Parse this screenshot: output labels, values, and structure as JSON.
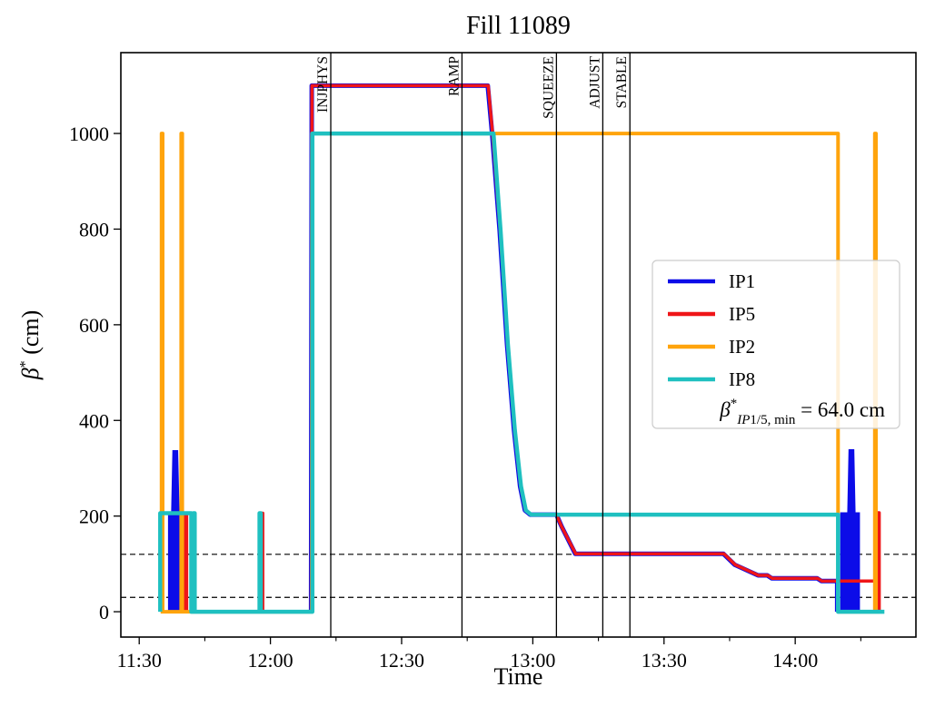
{
  "chart_data": {
    "type": "line",
    "title": "Fill 11089",
    "xlabel": "Time",
    "ylabel": {
      "beta": "β",
      "star": "*",
      "unit": " (cm)"
    },
    "x_unit": "minutes_since_11:30",
    "xlim_minutes": [
      -4.2,
      177.6
    ],
    "ylim_cm": [
      -53,
      1169
    ],
    "x_ticks": [
      {
        "label": "11:30",
        "t": 0
      },
      {
        "label": "12:00",
        "t": 30
      },
      {
        "label": "12:30",
        "t": 60
      },
      {
        "label": "13:00",
        "t": 90
      },
      {
        "label": "13:30",
        "t": 120
      },
      {
        "label": "14:00",
        "t": 150
      }
    ],
    "x_minor_ticks": [
      15,
      45,
      75,
      105,
      135,
      165
    ],
    "y_ticks": [
      0,
      200,
      400,
      600,
      800,
      1000
    ],
    "dashed_hlines_cm": [
      120,
      30
    ],
    "beam_modes": [
      {
        "label": "INJPHYS",
        "t": 43.8
      },
      {
        "label": "RAMP",
        "t": 73.8
      },
      {
        "label": "SQUEEZE",
        "t": 95.4
      },
      {
        "label": "ADJUST",
        "t": 106.0
      },
      {
        "label": "STABLE",
        "t": 112.2
      }
    ],
    "series": [
      {
        "name": "IP1",
        "color": "#0c0ce8",
        "points": [
          [
            39.3,
            0
          ],
          [
            39.45,
            1100
          ],
          [
            79.7,
            1100
          ],
          [
            80.7,
            1000
          ],
          [
            82.4,
            800
          ],
          [
            84.1,
            560
          ],
          [
            85.7,
            380
          ],
          [
            87.1,
            262
          ],
          [
            88.2,
            212
          ],
          [
            89.4,
            203
          ],
          [
            95.4,
            203
          ],
          [
            96.6,
            178
          ],
          [
            99.7,
            121
          ],
          [
            133.6,
            121
          ],
          [
            136.2,
            98
          ],
          [
            141.5,
            76
          ],
          [
            143.6,
            76
          ],
          [
            144.6,
            70
          ],
          [
            155.0,
            70
          ],
          [
            156.0,
            64
          ],
          [
            159.6,
            64
          ],
          [
            159.6,
            0
          ]
        ],
        "bursts": [
          [
            [
              6.9,
              0
            ],
            [
              6.9,
              205
            ],
            [
              7.6,
              205
            ],
            [
              7.9,
              335
            ],
            [
              8.6,
              335
            ],
            [
              8.9,
              205
            ],
            [
              10.1,
              205
            ],
            [
              10.1,
              0
            ]
          ],
          [
            [
              160.6,
              0
            ],
            [
              160.6,
              205
            ],
            [
              162.2,
              205
            ],
            [
              162.5,
              337
            ],
            [
              163.2,
              337
            ],
            [
              163.5,
              205
            ],
            [
              164.5,
              205
            ],
            [
              164.5,
              0
            ]
          ]
        ]
      },
      {
        "name": "IP5",
        "color": "#ef1518",
        "points": [
          [
            10.5,
            0
          ],
          [
            10.5,
            206
          ],
          [
            10.85,
            206
          ],
          [
            10.85,
            0
          ],
          [
            27.9,
            0
          ],
          [
            27.9,
            206
          ],
          [
            28.25,
            206
          ],
          [
            28.25,
            0
          ],
          [
            39.35,
            0
          ],
          [
            39.5,
            1100
          ],
          [
            79.8,
            1100
          ],
          [
            80.8,
            1000
          ],
          [
            82.5,
            800
          ],
          [
            84.2,
            560
          ],
          [
            85.8,
            380
          ],
          [
            87.2,
            262
          ],
          [
            88.3,
            212
          ],
          [
            89.5,
            203
          ],
          [
            95.4,
            203
          ],
          [
            96.6,
            178
          ],
          [
            99.8,
            121
          ],
          [
            133.7,
            121
          ],
          [
            136.3,
            98
          ],
          [
            141.6,
            76
          ],
          [
            143.7,
            76
          ],
          [
            144.7,
            70
          ],
          [
            155.1,
            70
          ],
          [
            156.1,
            64
          ],
          [
            168.8,
            64
          ],
          [
            168.8,
            207
          ],
          [
            169.2,
            207
          ],
          [
            169.2,
            0
          ],
          [
            170.1,
            0
          ]
        ],
        "bursts": []
      },
      {
        "name": "IP2",
        "color": "#ffa40c",
        "points": [
          [
            4.9,
            0
          ],
          [
            5.1,
            0
          ],
          [
            5.1,
            1000
          ],
          [
            5.35,
            1000
          ],
          [
            5.35,
            0
          ],
          [
            9.6,
            0
          ],
          [
            9.6,
            1000
          ],
          [
            9.85,
            1000
          ],
          [
            9.85,
            0
          ],
          [
            39.5,
            0
          ],
          [
            39.5,
            1000
          ],
          [
            159.8,
            1000
          ],
          [
            159.8,
            0
          ],
          [
            168.2,
            0
          ],
          [
            168.2,
            1000
          ],
          [
            168.45,
            1000
          ],
          [
            168.45,
            0
          ],
          [
            169.3,
            0
          ]
        ],
        "bursts": []
      },
      {
        "name": "IP8",
        "color": "#1fc0c0",
        "points": [
          [
            4.8,
            0
          ],
          [
            4.8,
            206
          ],
          [
            11.9,
            206
          ],
          [
            11.9,
            0
          ],
          [
            12.4,
            0
          ],
          [
            12.4,
            206
          ],
          [
            12.7,
            206
          ],
          [
            12.7,
            0
          ],
          [
            27.5,
            0
          ],
          [
            27.5,
            206
          ],
          [
            27.8,
            206
          ],
          [
            27.8,
            0
          ],
          [
            39.6,
            0
          ],
          [
            39.6,
            1000
          ],
          [
            81.0,
            1000
          ],
          [
            82.6,
            800
          ],
          [
            84.3,
            560
          ],
          [
            85.9,
            380
          ],
          [
            87.3,
            262
          ],
          [
            88.4,
            212
          ],
          [
            89.6,
            203
          ],
          [
            159.8,
            203
          ],
          [
            159.8,
            0
          ],
          [
            170.4,
            0
          ]
        ],
        "bursts": []
      }
    ],
    "legend": {
      "entries": [
        "IP1",
        "IP5",
        "IP2",
        "IP8"
      ],
      "annotation": {
        "beta": "β",
        "star": "*",
        "sub_italic": "IP",
        "sub_plain": "1/5, min",
        "value": " = 64.0 cm"
      }
    }
  }
}
